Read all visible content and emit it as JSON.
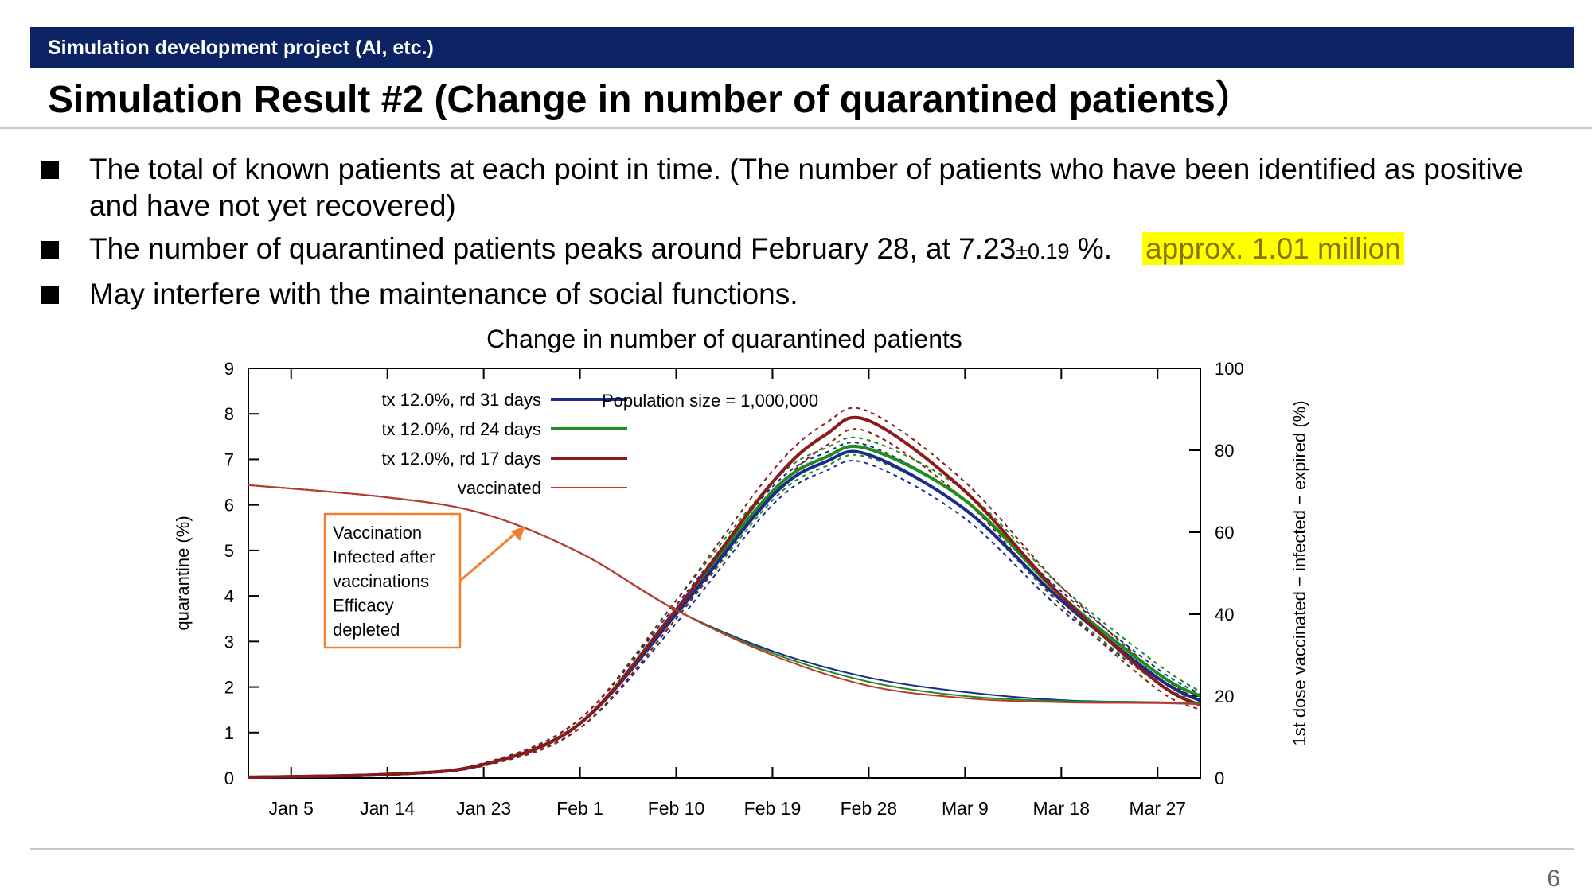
{
  "header": {
    "project_label": "Simulation development project (AI, etc.)"
  },
  "slide": {
    "title": "Simulation Result #2 (Change in number of quarantined patients）",
    "page_number": "6"
  },
  "bullets": [
    {
      "text": "The total of known patients at each point in time. (The number of patients who have been identified as positive and have not yet recovered)"
    },
    {
      "text_before": "The number of quarantined patients peaks around February 28, at 7.23",
      "uncertainty": "±0.19",
      "text_after": " %.",
      "highlight": "approx. 1.01 million"
    },
    {
      "text": "May interfere with the maintenance of social functions."
    }
  ],
  "colors": {
    "header_bg": "#0b2363",
    "highlight_bg": "#ffff00",
    "series_rd31": "#1b2b8c",
    "series_rd24": "#1f8c1f",
    "series_rd17": "#8b1a1a",
    "vaccinated": "#c0392b",
    "annotation_border": "#f08030"
  },
  "chart_data": {
    "type": "line",
    "title": "Change in number of quarantined patients",
    "ylabel": "quarantine (%)",
    "y2label": "1st dose vaccinated − infected − expired (%)",
    "ylim": [
      0,
      9
    ],
    "y2lim": [
      0,
      100
    ],
    "yticks": [
      0,
      1,
      2,
      3,
      4,
      5,
      6,
      7,
      8,
      9
    ],
    "y2ticks": [
      0,
      20,
      40,
      60,
      80,
      100
    ],
    "xticks": [
      "Jan 5",
      "Jan 14",
      "Jan 23",
      "Feb 1",
      "Feb 10",
      "Feb 19",
      "Feb 28",
      "Mar 9",
      "Mar 18",
      "Mar 27"
    ],
    "x_axis_unit": "days",
    "xlim": [
      "Jan 1",
      "Mar 31"
    ],
    "grid": false,
    "legend_position": "top-left",
    "annotation_text": "Population size = 1,000,000",
    "callout_lines": [
      "Vaccination",
      "Infected after",
      "vaccinations",
      "Efficacy",
      "depleted"
    ],
    "series": [
      {
        "name": "tx 12.0%, rd 31 days",
        "axis": "left",
        "x": [
          "Jan 1",
          "Jan 14",
          "Jan 23",
          "Feb 1",
          "Feb 10",
          "Feb 19",
          "Feb 24",
          "Feb 28",
          "Mar 9",
          "Mar 18",
          "Mar 27",
          "Mar 31"
        ],
        "y": [
          0.02,
          0.08,
          0.3,
          1.2,
          3.6,
          6.2,
          6.95,
          7.1,
          5.9,
          3.9,
          2.2,
          1.7
        ],
        "band_upper": [
          0.02,
          0.09,
          0.33,
          1.3,
          3.8,
          6.4,
          7.15,
          7.3,
          6.1,
          4.1,
          2.4,
          1.85
        ],
        "band_lower": [
          0.02,
          0.07,
          0.27,
          1.1,
          3.4,
          6.0,
          6.75,
          6.9,
          5.7,
          3.7,
          2.1,
          1.6
        ]
      },
      {
        "name": "tx 12.0%, rd 24 days",
        "axis": "left",
        "x": [
          "Jan 1",
          "Jan 14",
          "Jan 23",
          "Feb 1",
          "Feb 10",
          "Feb 19",
          "Feb 24",
          "Feb 28",
          "Mar 9",
          "Mar 18",
          "Mar 27",
          "Mar 31"
        ],
        "y": [
          0.02,
          0.08,
          0.3,
          1.2,
          3.7,
          6.3,
          7.05,
          7.23,
          6.1,
          4.0,
          2.3,
          1.8
        ],
        "band_upper": [
          0.02,
          0.09,
          0.33,
          1.3,
          3.9,
          6.5,
          7.25,
          7.42,
          6.3,
          4.2,
          2.5,
          1.9
        ],
        "band_lower": [
          0.02,
          0.07,
          0.27,
          1.1,
          3.5,
          6.1,
          6.85,
          7.04,
          5.9,
          3.8,
          2.1,
          1.7
        ]
      },
      {
        "name": "tx 12.0%, rd 17 days",
        "axis": "left",
        "x": [
          "Jan 1",
          "Jan 14",
          "Jan 23",
          "Feb 1",
          "Feb 10",
          "Feb 19",
          "Feb 24",
          "Feb 28",
          "Mar 9",
          "Mar 18",
          "Mar 27",
          "Mar 31"
        ],
        "y": [
          0.02,
          0.08,
          0.3,
          1.2,
          3.7,
          6.5,
          7.55,
          7.85,
          6.3,
          4.0,
          2.1,
          1.6
        ],
        "band_upper": [
          0.02,
          0.09,
          0.33,
          1.3,
          3.9,
          6.75,
          7.8,
          8.05,
          6.5,
          4.2,
          2.3,
          1.7
        ],
        "band_lower": [
          0.02,
          0.07,
          0.27,
          1.1,
          3.5,
          6.25,
          7.3,
          7.6,
          6.1,
          3.8,
          1.95,
          1.5
        ]
      },
      {
        "name": "vaccinated",
        "axis": "right",
        "x": [
          "Jan 1",
          "Jan 14",
          "Jan 23",
          "Feb 1",
          "Feb 10",
          "Feb 19",
          "Feb 28",
          "Mar 9",
          "Mar 18",
          "Mar 27",
          "Mar 31"
        ],
        "y_rd31": [
          71.5,
          68.5,
          64.5,
          55.0,
          41.0,
          31.0,
          24.5,
          21.0,
          19.0,
          18.5,
          18.3
        ],
        "y_rd24": [
          71.5,
          68.5,
          64.5,
          55.0,
          41.0,
          30.5,
          23.5,
          20.0,
          18.8,
          18.5,
          18.3
        ],
        "y_rd17": [
          71.5,
          68.5,
          64.5,
          55.0,
          41.0,
          30.0,
          22.5,
          19.5,
          18.5,
          18.3,
          18.0
        ]
      }
    ]
  }
}
